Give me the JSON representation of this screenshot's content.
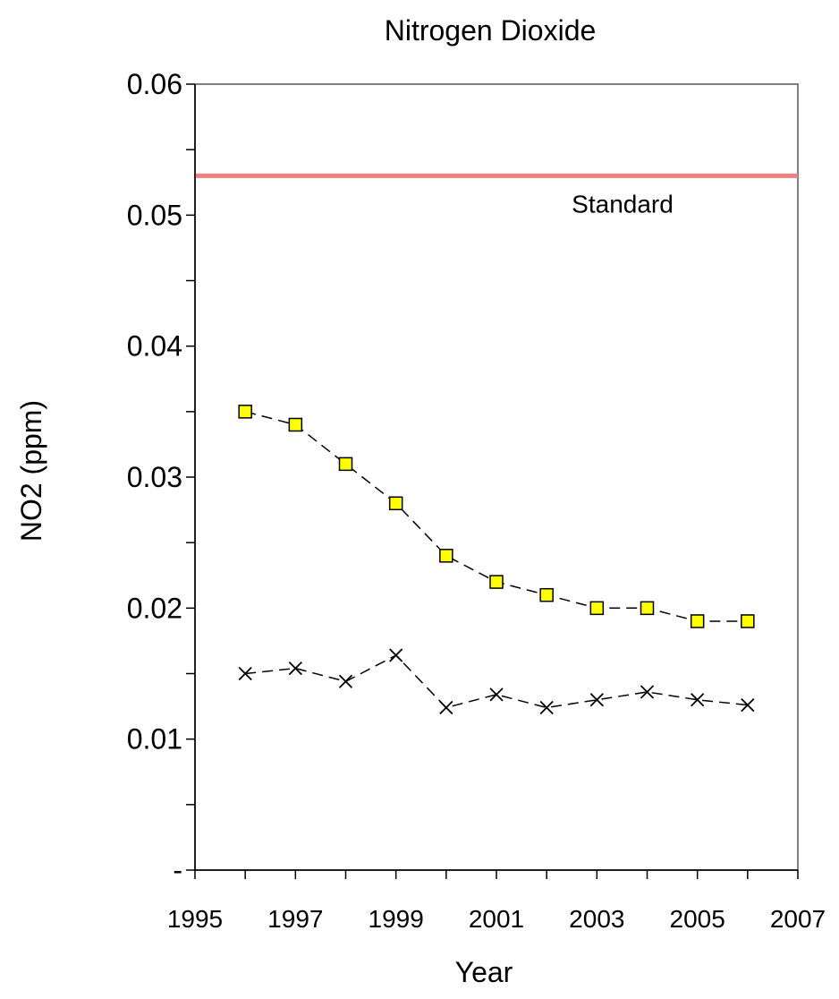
{
  "chart_data": {
    "type": "line",
    "title": "Nitrogen Dioxide",
    "xlabel": "Year",
    "ylabel": "NO2 (ppm)",
    "xlim": [
      1995,
      2007
    ],
    "ylim": [
      0,
      0.06
    ],
    "x_ticks": [
      "1995",
      "1997",
      "1999",
      "2001",
      "2003",
      "2005",
      "2007"
    ],
    "y_ticks": [
      "-",
      "0.01",
      "0.02",
      "0.03",
      "0.04",
      "0.05",
      "0.06"
    ],
    "grid": false,
    "x": [
      1996,
      1997,
      1998,
      1999,
      2000,
      2001,
      2002,
      2003,
      2004,
      2005,
      2006
    ],
    "series": [
      {
        "marker": "square",
        "color": "#ffff00",
        "line_style": "dashed",
        "values": [
          0.035,
          0.034,
          0.031,
          0.028,
          0.024,
          0.022,
          0.021,
          0.02,
          0.02,
          0.019,
          0.019
        ]
      },
      {
        "marker": "x",
        "color": "#000000",
        "line_style": "dashed",
        "values": [
          0.015,
          0.0154,
          0.0144,
          0.0164,
          0.0124,
          0.0134,
          0.0124,
          0.013,
          0.0136,
          0.013,
          0.0126
        ]
      }
    ],
    "reference_line": {
      "label": "Standard",
      "value": 0.053,
      "color": "#f08080"
    }
  }
}
